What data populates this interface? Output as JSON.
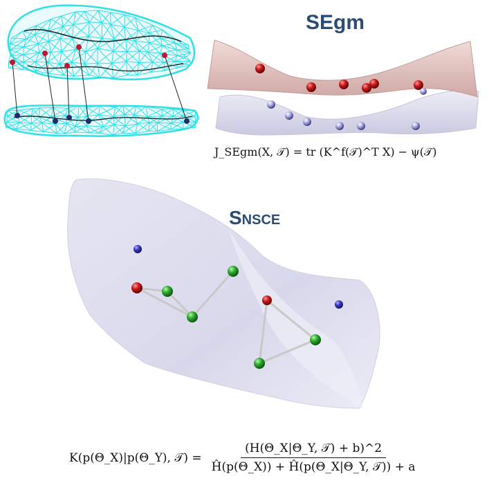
{
  "segm": {
    "title": "SEgm",
    "formula": "J_SEgm(X, 𝒯) = tr (K^f(𝒯)^T X) − ψ(𝒯)"
  },
  "snsce": {
    "title": "Snsce",
    "formula_lhs": "K(p(Θ_X)|p(Θ_Y), 𝒯) =",
    "formula_numerator": "(H(Θ_X|Θ_Y, 𝒯) + b)^2",
    "formula_denominator": "Ĥ(p(Θ_X)) + Ĥ(p(Θ_X|Θ_Y, 𝒯)) + a"
  },
  "colors": {
    "title": "#2a4d78",
    "mesh": "#2fe0e6",
    "red_node": "#cc1b1b",
    "green_node": "#2fae2f",
    "blue_node": "#3a3ac4",
    "upper_surface": "#e6c7c2",
    "lower_surface": "#dcdcee",
    "big_surface": "#dcdcee"
  }
}
